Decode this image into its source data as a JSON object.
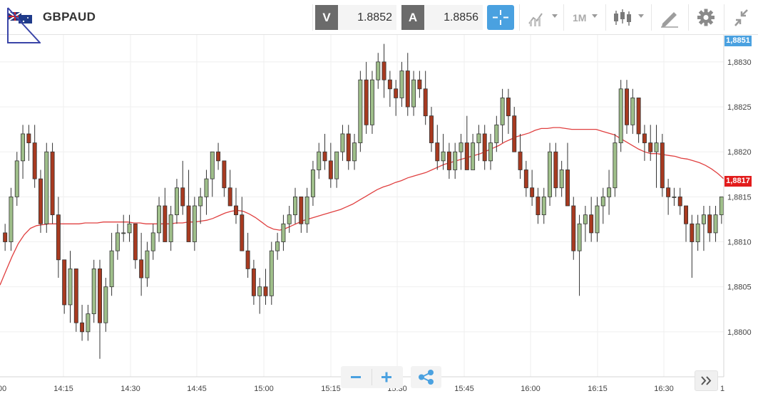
{
  "instrument": {
    "symbol": "GBPAUD",
    "flag_icon": "uk-australia-flag-icon"
  },
  "quotes": {
    "bid_label": "V",
    "bid_value": "1.8852",
    "ask_label": "A",
    "ask_value": "1.8856"
  },
  "toolbar": {
    "crosshair_icon": "crosshair-icon",
    "indicators_icon": "indicators-icon",
    "timeframe": "1M",
    "chart_type_icon": "candlestick-icon",
    "draw_icon": "pencil-ruler-icon",
    "settings_icon": "gear-icon",
    "collapse_icon": "collapse-arrows-icon"
  },
  "colors": {
    "up": "#9fbf8a",
    "down": "#a83a20",
    "ma": "#e04040",
    "accent": "#4aa1e0",
    "current_price_bg": "#e21c1c",
    "top_price_bg": "#4aa1e0"
  },
  "zoom": {
    "out_icon": "minus-icon",
    "in_icon": "plus-icon",
    "share_icon": "share-icon"
  },
  "scroll_icon": "double-chevron-right-icon",
  "chart_data": {
    "type": "candlestick",
    "title": "",
    "xlabel": "",
    "ylabel": "",
    "ylim": [
      1.8795,
      1.8833
    ],
    "y_ticks": [
      "1,8830",
      "1,8825",
      "1,8820",
      "1,8815",
      "1,8810",
      "1,8805",
      "1,8800"
    ],
    "y_tick_values": [
      1.883,
      1.8825,
      1.882,
      1.8815,
      1.881,
      1.8805,
      1.88
    ],
    "x_ticks": [
      "00",
      "14:15",
      "14:30",
      "14:45",
      "15:00",
      "15:15",
      "15:30",
      "15:45",
      "16:00",
      "16:15",
      "16:30",
      "1"
    ],
    "x_tick_minutes": [
      0,
      15,
      30,
      45,
      60,
      75,
      90,
      105,
      120,
      135,
      150,
      165
    ],
    "grid": true,
    "top_price_label": "1,8851",
    "current_price_label": "1,8817",
    "current_price_value": 1.88168,
    "candles_ohlc": [
      [
        1.8811,
        1.8812,
        1.8809,
        1.881
      ],
      [
        1.881,
        1.8816,
        1.8809,
        1.8815
      ],
      [
        1.8815,
        1.882,
        1.8814,
        1.8819
      ],
      [
        1.8819,
        1.8823,
        1.8817,
        1.8822
      ],
      [
        1.8822,
        1.8823,
        1.8819,
        1.8821
      ],
      [
        1.8821,
        1.8823,
        1.8816,
        1.8817
      ],
      [
        1.8817,
        1.8818,
        1.8811,
        1.8812
      ],
      [
        1.8812,
        1.8821,
        1.8811,
        1.882
      ],
      [
        1.882,
        1.8821,
        1.8812,
        1.8813
      ],
      [
        1.8813,
        1.8815,
        1.8806,
        1.8808
      ],
      [
        1.8808,
        1.8808,
        1.8802,
        1.8803
      ],
      [
        1.8803,
        1.8809,
        1.8801,
        1.8807
      ],
      [
        1.8807,
        1.8807,
        1.88,
        1.8801
      ],
      [
        1.8801,
        1.8803,
        1.8799,
        1.88
      ],
      [
        1.88,
        1.8803,
        1.8799,
        1.8802
      ],
      [
        1.8802,
        1.8808,
        1.8801,
        1.8807
      ],
      [
        1.8807,
        1.8808,
        1.8797,
        1.8801
      ],
      [
        1.8801,
        1.8806,
        1.88,
        1.8805
      ],
      [
        1.8805,
        1.8811,
        1.8804,
        1.8809
      ],
      [
        1.8809,
        1.8812,
        1.8808,
        1.8811
      ],
      [
        1.8811,
        1.8813,
        1.881,
        1.8811
      ],
      [
        1.8811,
        1.8813,
        1.881,
        1.8812
      ],
      [
        1.8812,
        1.8812,
        1.8807,
        1.8808
      ],
      [
        1.8808,
        1.8811,
        1.8804,
        1.8806
      ],
      [
        1.8806,
        1.881,
        1.8805,
        1.8809
      ],
      [
        1.8809,
        1.8812,
        1.8808,
        1.8811
      ],
      [
        1.8811,
        1.8815,
        1.881,
        1.8814
      ],
      [
        1.8814,
        1.8816,
        1.8812,
        1.881
      ],
      [
        1.881,
        1.8814,
        1.8809,
        1.8813
      ],
      [
        1.8813,
        1.8817,
        1.8812,
        1.8816
      ],
      [
        1.8816,
        1.8819,
        1.8813,
        1.8814
      ],
      [
        1.8814,
        1.8818,
        1.881,
        1.881
      ],
      [
        1.881,
        1.8815,
        1.8809,
        1.8814
      ],
      [
        1.8814,
        1.8816,
        1.8812,
        1.8815
      ],
      [
        1.8815,
        1.8818,
        1.8813,
        1.8817
      ],
      [
        1.8817,
        1.8819,
        1.8815,
        1.882
      ],
      [
        1.882,
        1.8821,
        1.8818,
        1.8819
      ],
      [
        1.8819,
        1.8819,
        1.8815,
        1.8816
      ],
      [
        1.8816,
        1.8818,
        1.8814,
        1.8814
      ],
      [
        1.8814,
        1.8816,
        1.8812,
        1.8813
      ],
      [
        1.8813,
        1.8815,
        1.8811,
        1.8809
      ],
      [
        1.8809,
        1.8811,
        1.8806,
        1.8807
      ],
      [
        1.8807,
        1.8808,
        1.8803,
        1.8804
      ],
      [
        1.8804,
        1.8806,
        1.8802,
        1.8805
      ],
      [
        1.8805,
        1.8807,
        1.8803,
        1.8804
      ],
      [
        1.8804,
        1.881,
        1.8803,
        1.8809
      ],
      [
        1.8809,
        1.8811,
        1.8808,
        1.881
      ],
      [
        1.881,
        1.8813,
        1.8809,
        1.8812
      ],
      [
        1.8812,
        1.8814,
        1.8811,
        1.8813
      ],
      [
        1.8813,
        1.8816,
        1.8812,
        1.8815
      ],
      [
        1.8815,
        1.8815,
        1.8811,
        1.8812
      ],
      [
        1.8812,
        1.8816,
        1.8811,
        1.8815
      ],
      [
        1.8815,
        1.8819,
        1.8814,
        1.8818
      ],
      [
        1.8818,
        1.8821,
        1.8817,
        1.882
      ],
      [
        1.882,
        1.8822,
        1.8818,
        1.8819
      ],
      [
        1.8819,
        1.8821,
        1.8816,
        1.8817
      ],
      [
        1.8817,
        1.882,
        1.8816,
        1.882
      ],
      [
        1.882,
        1.8823,
        1.8819,
        1.8822
      ],
      [
        1.8822,
        1.8823,
        1.8818,
        1.8819
      ],
      [
        1.8819,
        1.8822,
        1.8818,
        1.8821
      ],
      [
        1.8821,
        1.8829,
        1.882,
        1.8828
      ],
      [
        1.8828,
        1.883,
        1.8822,
        1.8823
      ],
      [
        1.8823,
        1.8829,
        1.8822,
        1.8828
      ],
      [
        1.8828,
        1.8831,
        1.8827,
        1.883
      ],
      [
        1.883,
        1.8832,
        1.8826,
        1.8828
      ],
      [
        1.8828,
        1.8829,
        1.8825,
        1.8827
      ],
      [
        1.8827,
        1.8828,
        1.8824,
        1.8826
      ],
      [
        1.8826,
        1.883,
        1.8825,
        1.8829
      ],
      [
        1.8829,
        1.8831,
        1.8824,
        1.8825
      ],
      [
        1.8825,
        1.8829,
        1.8824,
        1.8828
      ],
      [
        1.8828,
        1.8829,
        1.8826,
        1.8827
      ],
      [
        1.8827,
        1.8829,
        1.8823,
        1.8824
      ],
      [
        1.8824,
        1.8825,
        1.882,
        1.8821
      ],
      [
        1.8821,
        1.8823,
        1.8818,
        1.8819
      ],
      [
        1.8819,
        1.8822,
        1.8818,
        1.882
      ],
      [
        1.882,
        1.8821,
        1.8817,
        1.8818
      ],
      [
        1.8818,
        1.8821,
        1.8817,
        1.882
      ],
      [
        1.882,
        1.8822,
        1.8818,
        1.8821
      ],
      [
        1.8821,
        1.8824,
        1.8819,
        1.8818
      ],
      [
        1.8818,
        1.8822,
        1.8818,
        1.8821
      ],
      [
        1.8821,
        1.8823,
        1.8819,
        1.8822
      ],
      [
        1.8822,
        1.8823,
        1.8818,
        1.8819
      ],
      [
        1.8819,
        1.8822,
        1.8818,
        1.8821
      ],
      [
        1.8821,
        1.8824,
        1.882,
        1.8823
      ],
      [
        1.8823,
        1.8827,
        1.8821,
        1.8826
      ],
      [
        1.8826,
        1.8827,
        1.8822,
        1.8824
      ],
      [
        1.8824,
        1.8825,
        1.882,
        1.882
      ],
      [
        1.882,
        1.8822,
        1.8817,
        1.8818
      ],
      [
        1.8818,
        1.8819,
        1.8815,
        1.8816
      ],
      [
        1.8816,
        1.8818,
        1.8814,
        1.8815
      ],
      [
        1.8815,
        1.8816,
        1.8812,
        1.8813
      ],
      [
        1.8813,
        1.8816,
        1.8812,
        1.8815
      ],
      [
        1.8815,
        1.8821,
        1.8814,
        1.882
      ],
      [
        1.882,
        1.8821,
        1.8815,
        1.8816
      ],
      [
        1.8816,
        1.8819,
        1.8815,
        1.8818
      ],
      [
        1.8818,
        1.8821,
        1.8816,
        1.8814
      ],
      [
        1.8814,
        1.8815,
        1.8808,
        1.8809
      ],
      [
        1.8809,
        1.8813,
        1.8804,
        1.8812
      ],
      [
        1.8812,
        1.8814,
        1.881,
        1.8813
      ],
      [
        1.8813,
        1.8815,
        1.881,
        1.8811
      ],
      [
        1.8811,
        1.8815,
        1.881,
        1.8814
      ],
      [
        1.8814,
        1.8816,
        1.8812,
        1.8815
      ],
      [
        1.8815,
        1.8818,
        1.8813,
        1.8816
      ],
      [
        1.8816,
        1.8822,
        1.8815,
        1.8821
      ],
      [
        1.8821,
        1.8828,
        1.882,
        1.8827
      ],
      [
        1.8827,
        1.8828,
        1.8822,
        1.8823
      ],
      [
        1.8823,
        1.8827,
        1.8822,
        1.8826
      ],
      [
        1.8826,
        1.8826,
        1.8821,
        1.8822
      ],
      [
        1.8822,
        1.8823,
        1.8819,
        1.8821
      ],
      [
        1.8821,
        1.8823,
        1.8819,
        1.882
      ],
      [
        1.882,
        1.8823,
        1.8816,
        1.8821
      ],
      [
        1.8821,
        1.8822,
        1.8815,
        1.8816
      ],
      [
        1.8816,
        1.8817,
        1.8813,
        1.8815
      ],
      [
        1.8815,
        1.8816,
        1.8814,
        1.8815
      ],
      [
        1.8815,
        1.8816,
        1.8813,
        1.8814
      ],
      [
        1.8814,
        1.8814,
        1.881,
        1.8812
      ],
      [
        1.8812,
        1.8813,
        1.8806,
        1.881
      ],
      [
        1.881,
        1.8813,
        1.8809,
        1.8812
      ],
      [
        1.8812,
        1.8814,
        1.8809,
        1.8813
      ],
      [
        1.8813,
        1.8814,
        1.881,
        1.8811
      ],
      [
        1.8811,
        1.8814,
        1.881,
        1.8813
      ],
      [
        1.8813,
        1.8815,
        1.8812,
        1.8815
      ]
    ],
    "series": [
      {
        "name": "",
        "type": "moving-average",
        "values": [
          1.88052,
          1.88068,
          1.88084,
          1.88098,
          1.88108,
          1.88115,
          1.88118,
          1.88119,
          1.8812,
          1.8812,
          1.8812,
          1.8812,
          1.8812,
          1.8812,
          1.88121,
          1.88121,
          1.88121,
          1.88122,
          1.88122,
          1.88122,
          1.88122,
          1.88122,
          1.88121,
          1.88121,
          1.8812,
          1.8812,
          1.8812,
          1.8812,
          1.8812,
          1.88121,
          1.88121,
          1.88122,
          1.88122,
          1.88123,
          1.88124,
          1.88126,
          1.88129,
          1.88132,
          1.88134,
          1.88135,
          1.88134,
          1.88131,
          1.88127,
          1.88122,
          1.88117,
          1.88114,
          1.88113,
          1.88115,
          1.88118,
          1.88121,
          1.88124,
          1.88126,
          1.88128,
          1.8813,
          1.88132,
          1.88134,
          1.88136,
          1.88139,
          1.88142,
          1.88146,
          1.8815,
          1.88154,
          1.88158,
          1.88161,
          1.88163,
          1.88166,
          1.88168,
          1.88171,
          1.88173,
          1.88175,
          1.88177,
          1.8818,
          1.88183,
          1.88186,
          1.88188,
          1.8819,
          1.88192,
          1.88194,
          1.88196,
          1.88198,
          1.88201,
          1.88204,
          1.88207,
          1.88211,
          1.88214,
          1.88217,
          1.88219,
          1.88221,
          1.88224,
          1.88226,
          1.88226,
          1.88227,
          1.88227,
          1.88226,
          1.88225,
          1.88225,
          1.88225,
          1.88225,
          1.88225,
          1.88223,
          1.88221,
          1.88219,
          1.88215,
          1.88211,
          1.88207,
          1.88203,
          1.882,
          1.88198,
          1.88198,
          1.88197,
          1.88196,
          1.88195,
          1.88193,
          1.88192,
          1.8819,
          1.88188,
          1.88185,
          1.88181,
          1.88176,
          1.8817
        ]
      }
    ]
  }
}
